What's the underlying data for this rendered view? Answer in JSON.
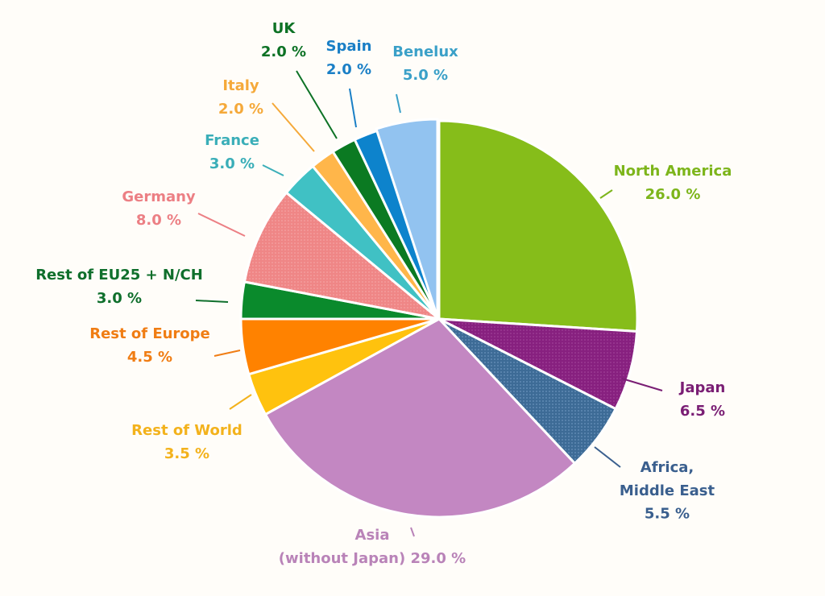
{
  "chart_data": {
    "type": "pie",
    "title": "",
    "unit": "%",
    "slices": [
      {
        "name": "North America",
        "value": 26.0,
        "value_label": "26.0 %",
        "color": "#86bd1a",
        "label_color": "#7db51b"
      },
      {
        "name": "Japan",
        "value": 6.5,
        "value_label": "6.5 %",
        "color": "#87207f",
        "label_color": "#7a1e74"
      },
      {
        "name": "Africa, Middle East",
        "name_lines": [
          "Africa,",
          "Middle East"
        ],
        "value": 5.5,
        "value_label": "5.5 %",
        "color": "#3d6b96",
        "label_color": "#3a5f8e"
      },
      {
        "name": "Asia (without Japan)",
        "name_lines": [
          "Asia",
          "(without Japan) 29.0 %"
        ],
        "value": 29.0,
        "value_label": "29.0 %",
        "color": "#c387c2",
        "label_color": "#b983b8"
      },
      {
        "name": "Rest of World",
        "value": 3.5,
        "value_label": "3.5 %",
        "color": "#ffc20e",
        "label_color": "#f3b21c"
      },
      {
        "name": "Rest of Europe",
        "value": 4.5,
        "value_label": "4.5 %",
        "color": "#ff8200",
        "label_color": "#f07d14"
      },
      {
        "name": "Rest of EU25 + N/CH",
        "value": 3.0,
        "value_label": "3.0 %",
        "color": "#0a8a2c",
        "label_color": "#0f6f2c"
      },
      {
        "name": "Germany",
        "value": 8.0,
        "value_label": "8.0 %",
        "color": "#f08a8a",
        "label_color": "#ec7f84"
      },
      {
        "name": "France",
        "value": 3.0,
        "value_label": "3.0 %",
        "color": "#40c1c4",
        "label_color": "#3aaeb8"
      },
      {
        "name": "Italy",
        "value": 2.0,
        "value_label": "2.0 %",
        "color": "#ffb64a",
        "label_color": "#f5a93a"
      },
      {
        "name": "UK",
        "value": 2.0,
        "value_label": "2.0 %",
        "color": "#0b7a22",
        "label_color": "#0d7225"
      },
      {
        "name": "Spain",
        "value": 2.0,
        "value_label": "2.0 %",
        "color": "#0d83cc",
        "label_color": "#1a7fc6"
      },
      {
        "name": "Benelux",
        "value": 5.0,
        "value_label": "5.0 %",
        "color": "#92c3f0",
        "label_color": "#3aa0c8"
      }
    ]
  }
}
